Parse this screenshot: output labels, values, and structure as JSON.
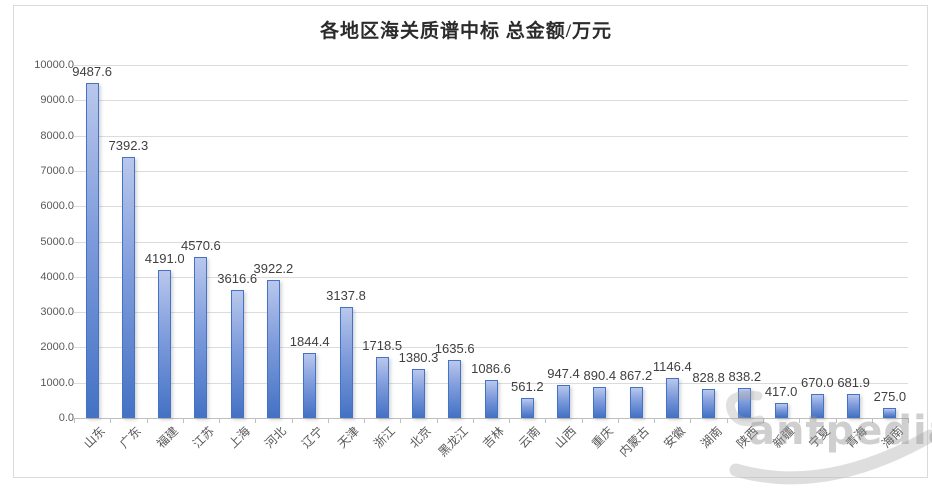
{
  "title": "各地区海关质谱中标 总金额/万元",
  "watermark": {
    "text": "antpedia"
  },
  "chart_data": {
    "type": "bar",
    "title": "各地区海关质谱中标 总金额/万元",
    "categories": [
      "山东",
      "广东",
      "福建",
      "江苏",
      "上海",
      "河北",
      "辽宁",
      "天津",
      "浙江",
      "北京",
      "黑龙江",
      "吉林",
      "云南",
      "山西",
      "重庆",
      "内蒙古",
      "安徽",
      "湖南",
      "陕西",
      "新疆",
      "宁夏",
      "青海",
      "海南"
    ],
    "values": [
      9487.6,
      7392.3,
      4191.0,
      4570.6,
      3616.6,
      3922.2,
      1844.4,
      3137.8,
      1718.5,
      1380.3,
      1635.6,
      1086.6,
      561.2,
      947.4,
      890.4,
      867.2,
      1146.4,
      828.8,
      838.2,
      417.0,
      670.0,
      681.9,
      275.0
    ],
    "xlabel": "",
    "ylabel": "",
    "ylim": [
      0,
      10000
    ],
    "ytick_step": 1000,
    "ytick_decimals": 1,
    "value_labels_decimals": 1,
    "grid": true,
    "legend_position": "none",
    "colors": {
      "bar_fill_top": "#b9c7ec",
      "bar_fill_bottom": "#4472c4",
      "bar_border": "#4472c4",
      "gridline": "#dcdcdc",
      "axis_text": "#595959",
      "value_label_text": "#404040",
      "title_text": "#2b2b2b",
      "watermark_text": "#8e8e8e"
    }
  }
}
